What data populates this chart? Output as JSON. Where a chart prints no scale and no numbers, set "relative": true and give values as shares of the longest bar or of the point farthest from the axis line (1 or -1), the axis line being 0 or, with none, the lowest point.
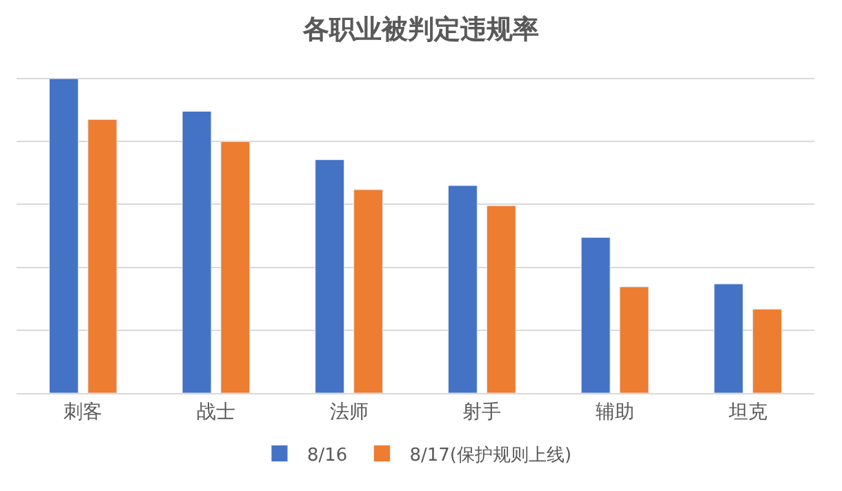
{
  "chart_data": {
    "type": "bar",
    "title": "各职业被判定违规率",
    "categories": [
      "刺客",
      "战士",
      "法师",
      "射手",
      "辅助",
      "坦克"
    ],
    "relative": true,
    "grid": "y",
    "legend": "bottom",
    "series": [
      {
        "name": "8/16",
        "color": "#4472c4",
        "values": [
          1,
          0.896,
          0.742,
          0.66,
          0.495,
          0.347
        ]
      },
      {
        "name": "8/17(保护规则上线)",
        "color": "#ed7d31",
        "values": [
          0.87,
          0.8,
          0.647,
          0.596,
          0.338,
          0.267
        ]
      }
    ]
  }
}
